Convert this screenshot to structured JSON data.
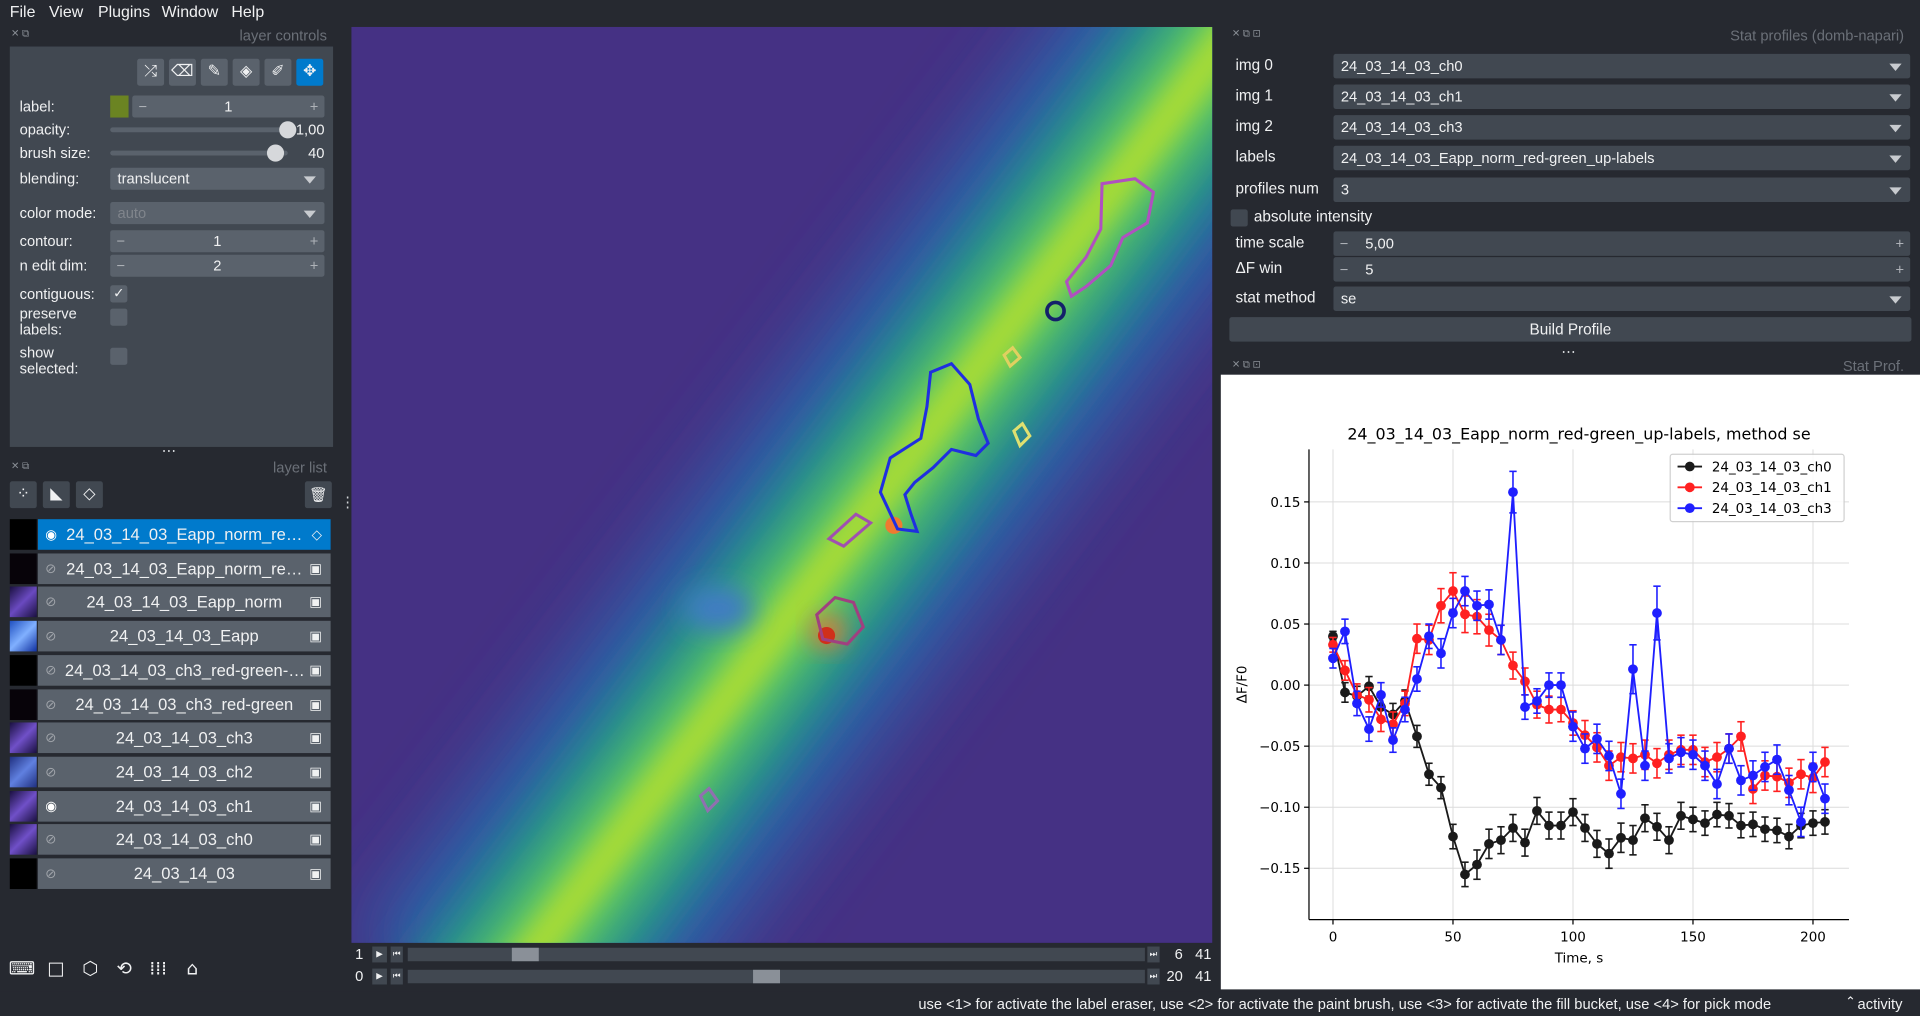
{
  "menu": [
    "File",
    "View",
    "Plugins",
    "Window",
    "Help"
  ],
  "layer_controls": {
    "title": "layer controls",
    "rows": [
      {
        "label": "label:",
        "value": "1",
        "control": "spin"
      },
      {
        "label": "opacity:",
        "value": "1,00",
        "control": "slider"
      },
      {
        "label": "brush size:",
        "value": "40",
        "control": "slider"
      },
      {
        "label": "blending:",
        "value": "translucent",
        "control": "combo"
      },
      {
        "label": "color mode:",
        "value": "auto",
        "control": "combo",
        "disabled": true
      },
      {
        "label": "contour:",
        "value": "1",
        "control": "spin"
      },
      {
        "label": "n edit dim:",
        "value": "2",
        "control": "spin"
      },
      {
        "label": "contiguous:",
        "control": "check",
        "checked": true
      },
      {
        "label": "preserve labels:",
        "control": "check",
        "checked": false
      },
      {
        "label": "show selected:",
        "control": "check",
        "checked": false
      }
    ]
  },
  "layer_list": {
    "title": "layer list",
    "layers": [
      {
        "name": "24_03_14_03_Eapp_norm_re…",
        "kind": "labels",
        "visible": true,
        "selected": true
      },
      {
        "name": "24_03_14_03_Eapp_norm_re…",
        "kind": "image",
        "visible": false,
        "selected": false
      },
      {
        "name": "24_03_14_03_Eapp_norm",
        "kind": "image",
        "visible": false,
        "selected": false
      },
      {
        "name": "24_03_14_03_Eapp",
        "kind": "image",
        "visible": false,
        "selected": false
      },
      {
        "name": "24_03_14_03_ch3_red-green-…",
        "kind": "image",
        "visible": false,
        "selected": false
      },
      {
        "name": "24_03_14_03_ch3_red-green",
        "kind": "image",
        "visible": false,
        "selected": false
      },
      {
        "name": "24_03_14_03_ch3",
        "kind": "image",
        "visible": false,
        "selected": false
      },
      {
        "name": "24_03_14_03_ch2",
        "kind": "image",
        "visible": false,
        "selected": false
      },
      {
        "name": "24_03_14_03_ch1",
        "kind": "image",
        "visible": true,
        "selected": false
      },
      {
        "name": "24_03_14_03_ch0",
        "kind": "image",
        "visible": false,
        "selected": false
      },
      {
        "name": "24_03_14_03",
        "kind": "image",
        "visible": false,
        "selected": false
      }
    ]
  },
  "dims": [
    {
      "axis": "1",
      "current": "6",
      "max": "41"
    },
    {
      "axis": "0",
      "current": "20",
      "max": "41"
    }
  ],
  "stat_widget": {
    "title": "Stat profiles (domb-napari)",
    "rows": [
      {
        "label": "img 0",
        "value": "24_03_14_03_ch0",
        "control": "combo"
      },
      {
        "label": "img 1",
        "value": "24_03_14_03_ch1",
        "control": "combo"
      },
      {
        "label": "img 2",
        "value": "24_03_14_03_ch3",
        "control": "combo"
      },
      {
        "label": "labels",
        "value": "24_03_14_03_Eapp_norm_red-green_up-labels",
        "control": "combo"
      },
      {
        "label": "profiles num",
        "value": "3",
        "control": "combo"
      },
      {
        "label": "absolute intensity",
        "control": "check",
        "checked": false
      },
      {
        "label": "time scale",
        "value": "5,00",
        "control": "spin"
      },
      {
        "label": "ΔF win",
        "value": "5",
        "control": "spin"
      },
      {
        "label": "stat method",
        "value": "se",
        "control": "combo"
      }
    ],
    "button": "Build Profile"
  },
  "plot_dock_title": "Stat Prof.",
  "status": {
    "message": "use <1> for activate the label eraser, use <2> for activate the paint brush, use <3> for activate the fill bucket, use <4> for pick mode",
    "activity": "activity"
  },
  "chart_data": {
    "type": "line",
    "title": "24_03_14_03_Eapp_norm_red-green_up-labels, method se",
    "xlabel": "Time, s",
    "ylabel": "ΔF/F0",
    "x": [
      0,
      5,
      10,
      15,
      20,
      25,
      30,
      35,
      40,
      45,
      50,
      55,
      60,
      65,
      70,
      75,
      80,
      85,
      90,
      95,
      100,
      105,
      110,
      115,
      120,
      125,
      130,
      135,
      140,
      145,
      150,
      155,
      160,
      165,
      170,
      175,
      180,
      185,
      190,
      195,
      200,
      205
    ],
    "series": [
      {
        "name": "24_03_14_03_ch0",
        "color": "#1a1a1a",
        "values": [
          0.04,
          -0.006,
          -0.009,
          -0.001,
          -0.018,
          -0.024,
          -0.013,
          -0.042,
          -0.073,
          -0.084,
          -0.124,
          -0.155,
          -0.147,
          -0.13,
          -0.127,
          -0.117,
          -0.129,
          -0.103,
          -0.115,
          -0.115,
          -0.104,
          -0.117,
          -0.13,
          -0.138,
          -0.125,
          -0.127,
          -0.109,
          -0.116,
          -0.127,
          -0.107,
          -0.11,
          -0.113,
          -0.106,
          -0.107,
          -0.115,
          -0.114,
          -0.118,
          -0.119,
          -0.124,
          -0.115,
          -0.113,
          -0.112
        ],
        "errors": [
          0.004,
          0.008,
          0.008,
          0.008,
          0.009,
          0.009,
          0.009,
          0.009,
          0.009,
          0.009,
          0.01,
          0.01,
          0.012,
          0.012,
          0.011,
          0.011,
          0.011,
          0.011,
          0.011,
          0.011,
          0.011,
          0.011,
          0.011,
          0.012,
          0.012,
          0.012,
          0.011,
          0.011,
          0.011,
          0.011,
          0.01,
          0.01,
          0.01,
          0.01,
          0.01,
          0.01,
          0.01,
          0.01,
          0.01,
          0.01,
          0.01,
          0.01
        ]
      },
      {
        "name": "24_03_14_03_ch1",
        "color": "#ff2020",
        "values": [
          0.033,
          0.012,
          -0.008,
          -0.012,
          -0.028,
          -0.032,
          -0.015,
          0.038,
          0.037,
          0.065,
          0.077,
          0.058,
          0.056,
          0.045,
          0.037,
          0.016,
          0.003,
          -0.016,
          -0.02,
          -0.02,
          -0.031,
          -0.041,
          -0.051,
          -0.066,
          -0.059,
          -0.06,
          -0.057,
          -0.064,
          -0.057,
          -0.053,
          -0.053,
          -0.063,
          -0.059,
          -0.052,
          -0.042,
          -0.085,
          -0.074,
          -0.075,
          -0.08,
          -0.073,
          -0.076,
          -0.063
        ],
        "errors": [
          0.006,
          0.008,
          0.009,
          0.01,
          0.01,
          0.01,
          0.01,
          0.012,
          0.012,
          0.014,
          0.015,
          0.015,
          0.014,
          0.013,
          0.012,
          0.011,
          0.011,
          0.011,
          0.011,
          0.01,
          0.01,
          0.012,
          0.012,
          0.012,
          0.012,
          0.012,
          0.012,
          0.012,
          0.012,
          0.012,
          0.012,
          0.012,
          0.012,
          0.012,
          0.012,
          0.012,
          0.012,
          0.012,
          0.012,
          0.012,
          0.012,
          0.012
        ]
      },
      {
        "name": "24_03_14_03_ch3",
        "color": "#1f1fff",
        "values": [
          0.022,
          0.044,
          -0.015,
          -0.036,
          -0.008,
          -0.045,
          -0.02,
          0.005,
          0.04,
          0.026,
          0.059,
          0.077,
          0.065,
          0.066,
          0.037,
          0.158,
          -0.018,
          -0.013,
          0.0,
          0.0,
          -0.034,
          -0.052,
          -0.044,
          -0.058,
          -0.089,
          0.013,
          -0.066,
          0.059,
          -0.06,
          -0.055,
          -0.057,
          -0.066,
          -0.081,
          -0.052,
          -0.078,
          -0.074,
          -0.067,
          -0.061,
          -0.086,
          -0.112,
          -0.067,
          -0.093
        ],
        "errors": [
          0.008,
          0.01,
          0.01,
          0.01,
          0.01,
          0.01,
          0.01,
          0.01,
          0.01,
          0.012,
          0.012,
          0.012,
          0.012,
          0.012,
          0.012,
          0.017,
          0.01,
          0.01,
          0.01,
          0.01,
          0.012,
          0.012,
          0.012,
          0.012,
          0.012,
          0.02,
          0.012,
          0.022,
          0.012,
          0.012,
          0.012,
          0.012,
          0.012,
          0.012,
          0.012,
          0.012,
          0.012,
          0.012,
          0.012,
          0.012,
          0.012,
          0.012
        ]
      }
    ],
    "xlim": [
      -10,
      215
    ],
    "ylim": [
      -0.192,
      0.193
    ],
    "xticks": [
      0,
      50,
      100,
      150,
      200
    ],
    "yticks": [
      {
        "value": -0.15,
        "label": "−0.15"
      },
      {
        "value": -0.1,
        "label": "−0.10"
      },
      {
        "value": -0.05,
        "label": "−0.05"
      },
      {
        "value": 0,
        "label": "0.00"
      },
      {
        "value": 0.05,
        "label": "0.05"
      },
      {
        "value": 0.1,
        "label": "0.10"
      },
      {
        "value": 0.15,
        "label": "0.15"
      }
    ],
    "grid": true,
    "legend": "upper right"
  }
}
